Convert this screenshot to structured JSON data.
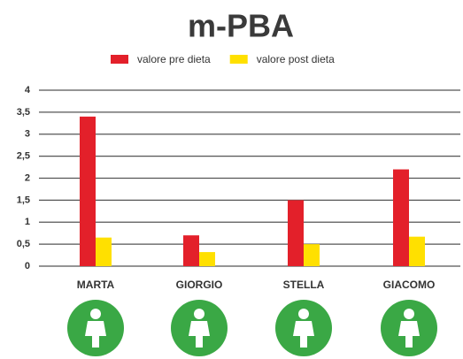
{
  "chart_data": {
    "type": "bar",
    "title": "m-PBA",
    "categories": [
      "MARTA",
      "GIORGIO",
      "STELLA",
      "GIACOMO"
    ],
    "series": [
      {
        "name": "valore pre dieta",
        "color": "#e3202a",
        "values": [
          3.4,
          0.7,
          1.5,
          2.2
        ]
      },
      {
        "name": "valore post dieta",
        "color": "#ffe000",
        "values": [
          0.65,
          0.32,
          0.5,
          0.67
        ]
      }
    ],
    "ylim": [
      0,
      4
    ],
    "yticks": [
      0,
      {
        "value": 0.5,
        "label": "0,5"
      },
      1,
      {
        "value": 1.5,
        "label": "1,5"
      },
      2,
      {
        "value": 2.5,
        "label": "2,5"
      },
      3,
      {
        "value": 3.5,
        "label": "3,5"
      },
      4
    ],
    "grid": true,
    "legend": "top"
  }
}
